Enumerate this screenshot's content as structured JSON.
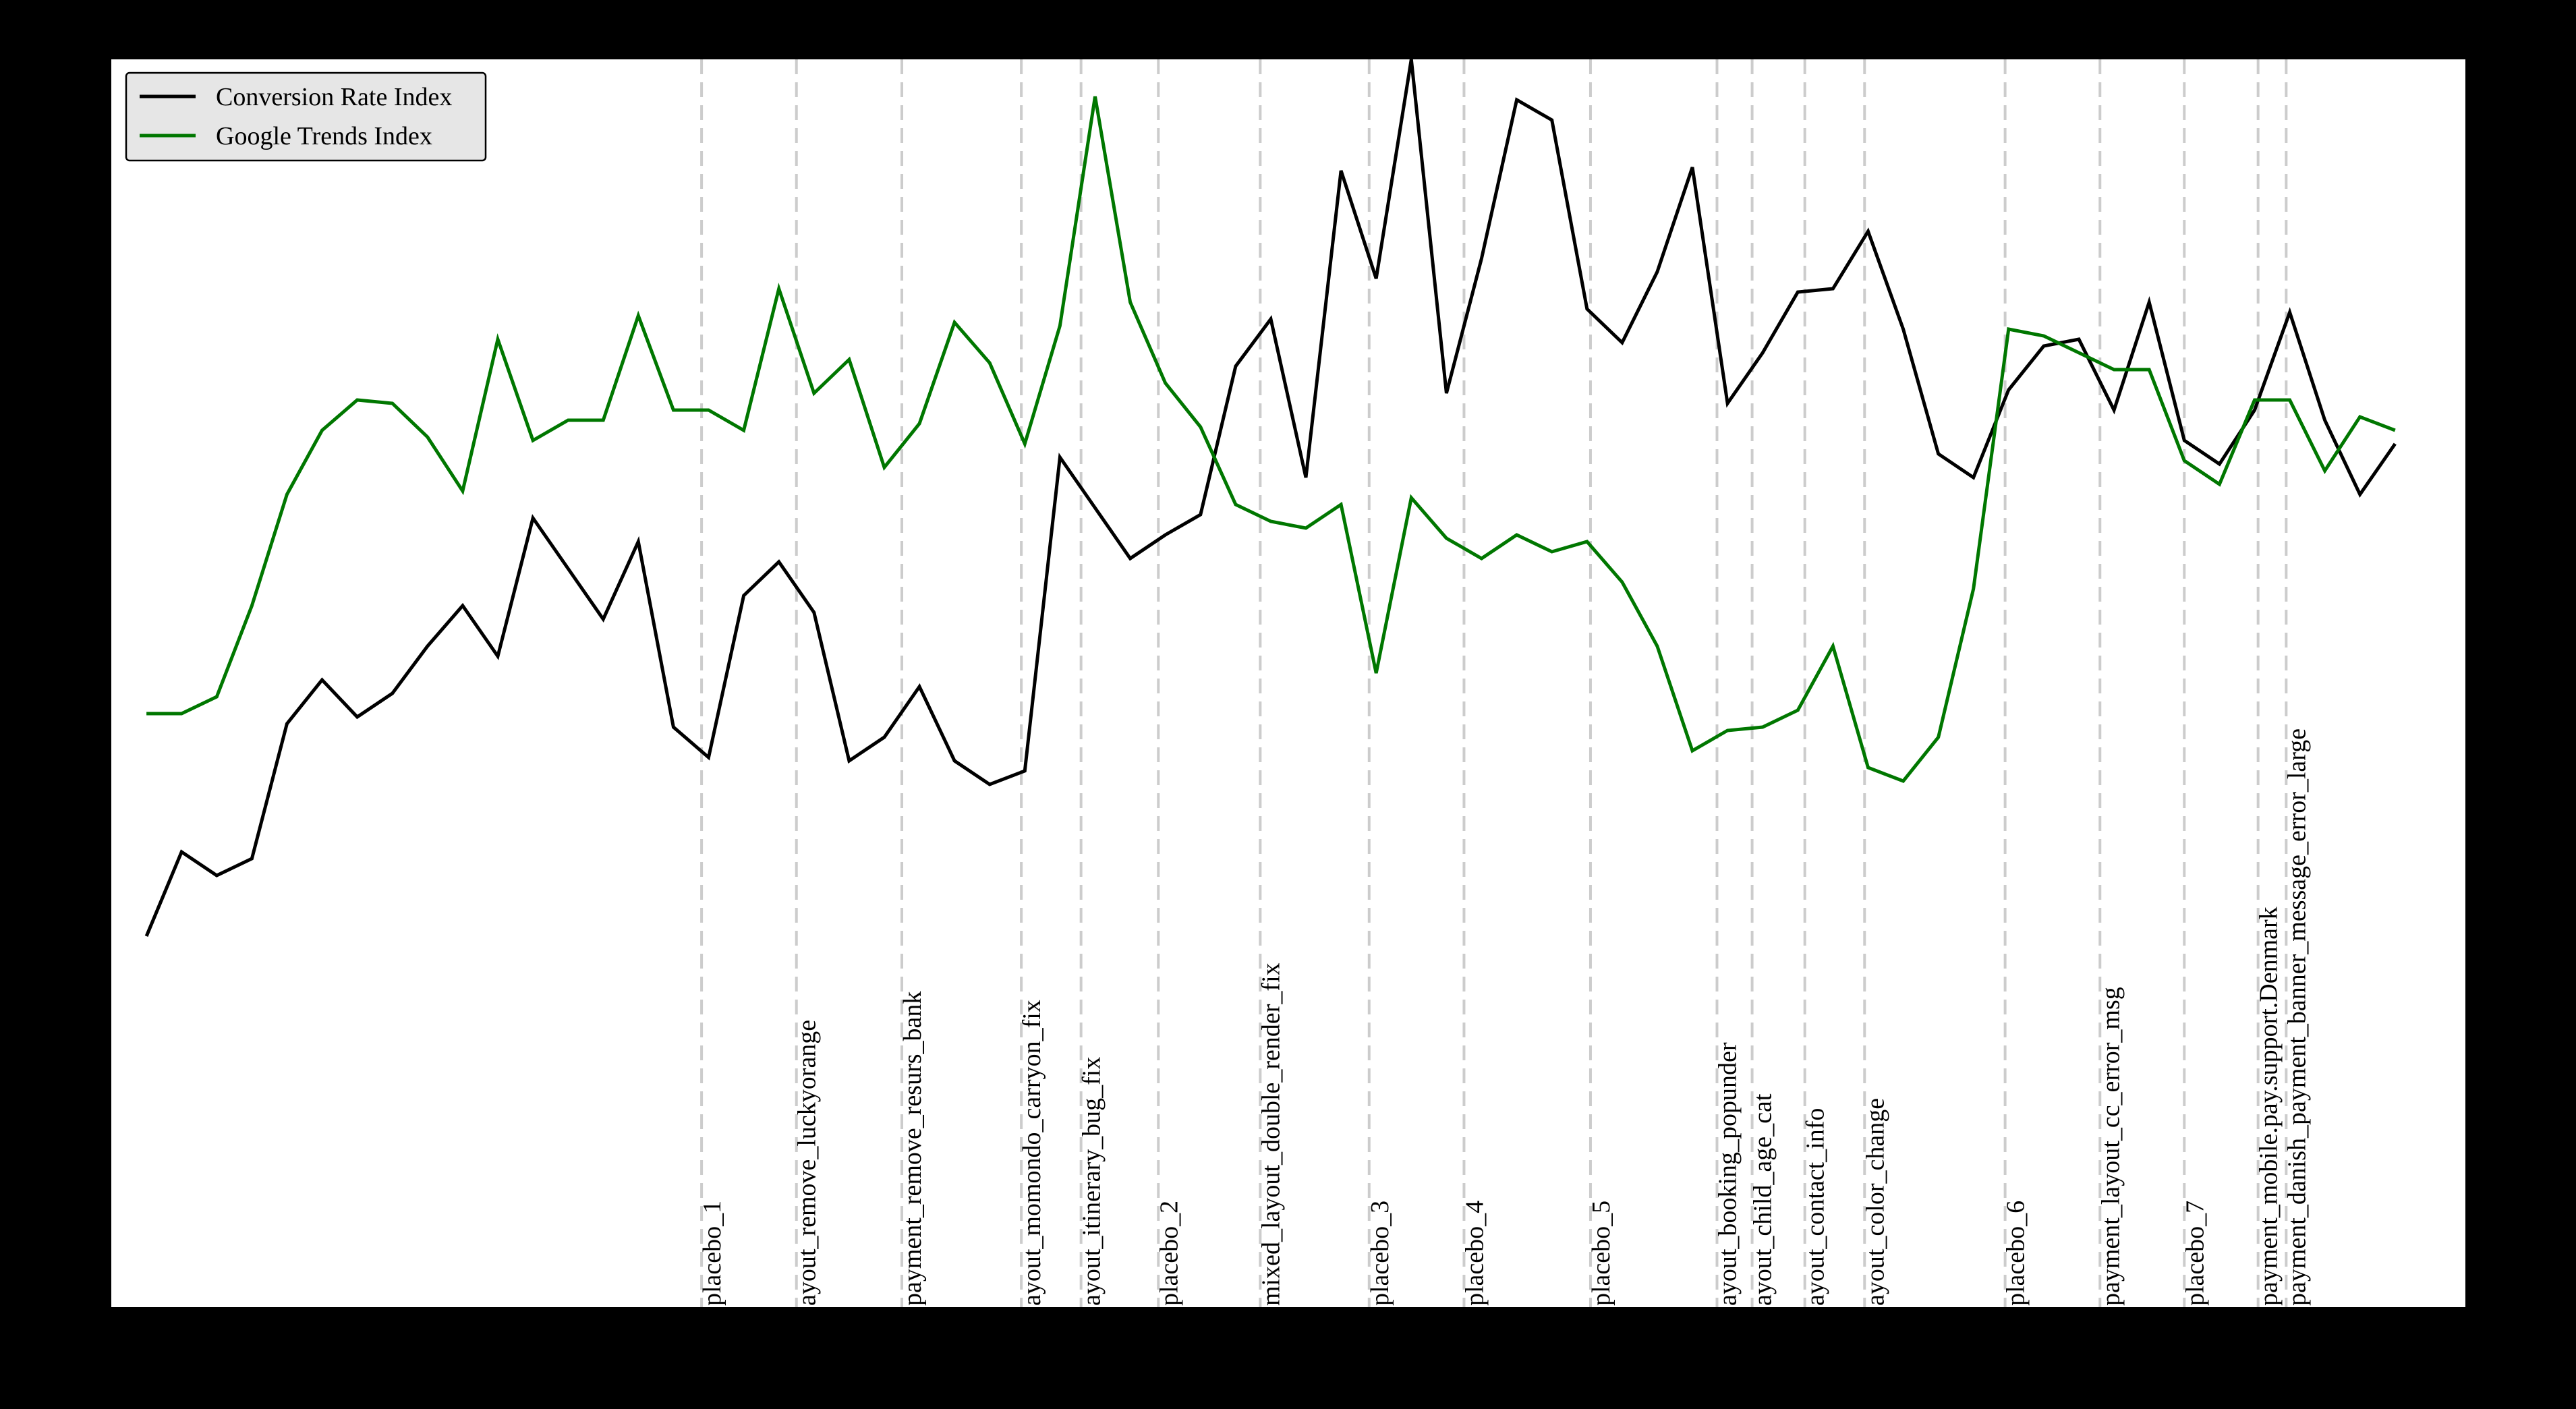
{
  "chart_data": {
    "type": "line",
    "title": "",
    "xlabel": "",
    "ylabel": "",
    "xlim": [
      -1,
      66
    ],
    "ylim": [
      0,
      37
    ],
    "grid": false,
    "axis_ticks_visible": false,
    "legend_position": "top-left",
    "x": [
      0,
      1,
      2,
      3,
      4,
      5,
      6,
      7,
      8,
      9,
      10,
      11,
      12,
      13,
      14,
      15,
      16,
      17,
      18,
      19,
      20,
      21,
      22,
      23,
      24,
      25,
      26,
      27,
      28,
      29,
      30,
      31,
      32,
      33,
      34,
      35,
      36,
      37,
      38,
      39,
      40,
      41,
      42,
      43,
      44,
      45,
      46,
      47,
      48,
      49,
      50,
      51,
      52,
      53,
      54,
      55,
      56,
      57,
      58,
      59,
      60,
      61,
      62,
      63,
      64
    ],
    "series": [
      {
        "name": "Conversion Rate Index",
        "color": "#000000",
        "values": [
          11.0,
          13.5,
          12.8,
          13.3,
          17.3,
          18.6,
          17.5,
          18.2,
          19.6,
          20.8,
          19.3,
          23.4,
          21.9,
          20.4,
          22.7,
          17.2,
          16.3,
          21.1,
          22.1,
          20.6,
          16.2,
          16.9,
          18.4,
          16.2,
          15.5,
          15.9,
          25.2,
          23.7,
          22.2,
          22.9,
          23.5,
          27.9,
          29.3,
          24.6,
          33.7,
          30.5,
          37.0,
          27.1,
          31.1,
          35.8,
          35.2,
          29.6,
          28.6,
          30.7,
          33.8,
          26.8,
          28.3,
          30.1,
          30.2,
          31.9,
          29.0,
          25.3,
          24.6,
          27.2,
          28.5,
          28.7,
          26.6,
          29.8,
          25.7,
          25.0,
          26.6,
          29.5,
          26.3,
          24.1,
          25.6
        ]
      },
      {
        "name": "Google Trends Index",
        "color": "#007700",
        "values": [
          17.6,
          17.6,
          18.1,
          20.8,
          24.1,
          26.0,
          26.9,
          26.8,
          25.8,
          24.2,
          28.7,
          25.7,
          26.3,
          26.3,
          29.4,
          26.6,
          26.6,
          26.0,
          30.2,
          27.1,
          28.1,
          24.9,
          26.2,
          29.2,
          28.0,
          25.6,
          29.1,
          35.9,
          29.8,
          27.4,
          26.1,
          23.8,
          23.3,
          23.1,
          23.8,
          18.8,
          24.0,
          22.8,
          22.2,
          22.9,
          22.4,
          22.7,
          21.5,
          19.6,
          16.5,
          17.1,
          17.2,
          17.7,
          19.6,
          16.0,
          15.6,
          16.9,
          21.3,
          29.0,
          28.8,
          28.3,
          27.8,
          27.8,
          25.1,
          24.4,
          26.9,
          26.9,
          24.8,
          26.4,
          26.0
        ]
      }
    ],
    "annotations": [
      {
        "x": 15.8,
        "label": "placebo_1"
      },
      {
        "x": 18.5,
        "label": "ayout_remove_luckyorange"
      },
      {
        "x": 21.5,
        "label": "payment_remove_resurs_bank"
      },
      {
        "x": 24.9,
        "label": "ayout_momondo_carryon_fix"
      },
      {
        "x": 26.6,
        "label": "ayout_itinerary_bug_fix"
      },
      {
        "x": 28.8,
        "label": "placebo_2"
      },
      {
        "x": 31.7,
        "label": "mixed_layout_double_render_fix"
      },
      {
        "x": 34.8,
        "label": "placebo_3"
      },
      {
        "x": 37.5,
        "label": "placebo_4"
      },
      {
        "x": 41.1,
        "label": "placebo_5"
      },
      {
        "x": 44.7,
        "label": "ayout_booking_popunder"
      },
      {
        "x": 45.7,
        "label": "ayout_child_age_cat"
      },
      {
        "x": 47.2,
        "label": "ayout_contact_info"
      },
      {
        "x": 48.9,
        "label": "ayout_color_change"
      },
      {
        "x": 52.9,
        "label": "placebo_6"
      },
      {
        "x": 55.6,
        "label": "payment_layout_cc_error_msg"
      },
      {
        "x": 58.0,
        "label": "placebo_7"
      },
      {
        "x": 60.1,
        "label": "payment_mobile.pay.support.Denmark"
      },
      {
        "x": 60.9,
        "label": "payment_danish_payment_banner_message_error_large"
      }
    ]
  }
}
